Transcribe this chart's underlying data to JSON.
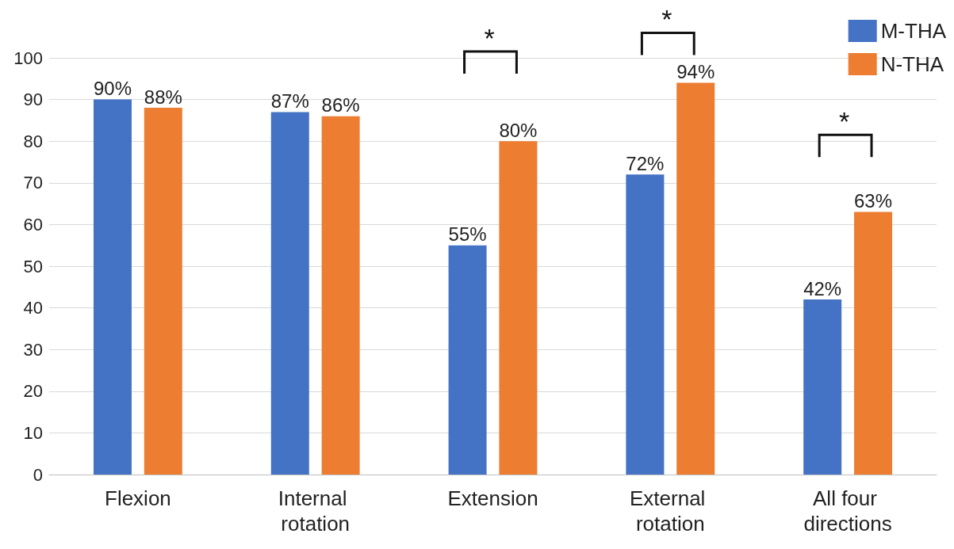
{
  "chart_data": {
    "type": "bar",
    "categories": [
      "Flexion",
      "Internal rotation",
      "Extension",
      "External rotation",
      "All four directions"
    ],
    "series": [
      {
        "name": "M-THA",
        "color": "#4472c4",
        "values": [
          90,
          87,
          55,
          72,
          42
        ],
        "value_labels": [
          "90%",
          "87%",
          "55%",
          "72%",
          "42%"
        ]
      },
      {
        "name": "N-THA",
        "color": "#ed7d31",
        "values": [
          88,
          86,
          80,
          94,
          63
        ],
        "value_labels": [
          "88%",
          "86%",
          "80%",
          "94%",
          "63%"
        ]
      }
    ],
    "ylim": [
      0,
      100
    ],
    "yticks": [
      0,
      10,
      20,
      30,
      40,
      50,
      60,
      70,
      80,
      90,
      100
    ],
    "grid": "y",
    "legend": "top right",
    "annotations": [
      "*",
      "*",
      "*"
    ]
  }
}
